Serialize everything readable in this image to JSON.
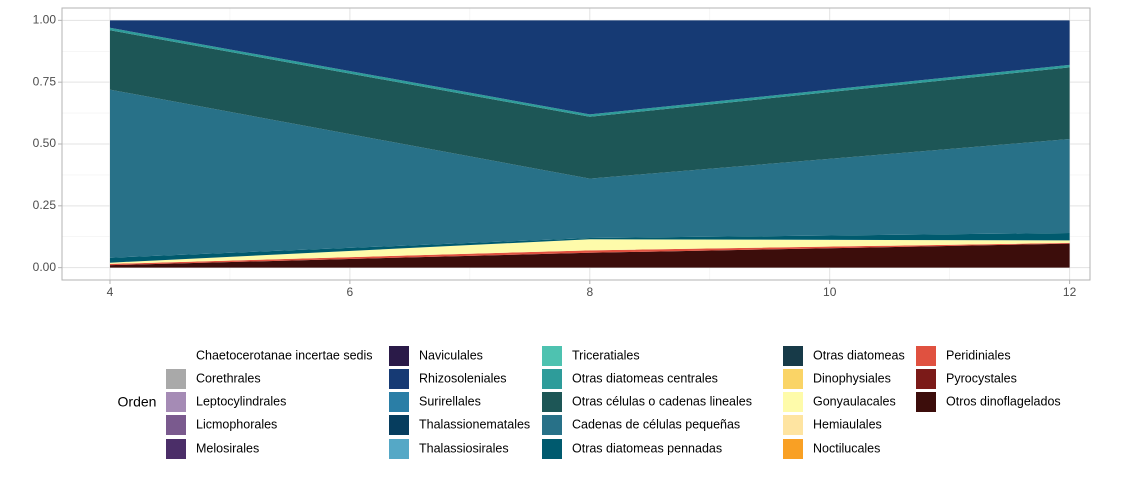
{
  "chart_data": {
    "type": "area",
    "stacked": true,
    "x": [
      4,
      8,
      12
    ],
    "xlim": [
      3.6,
      12.17
    ],
    "xticks": [
      4,
      6,
      8,
      10,
      12
    ],
    "ylim": [
      -0.05,
      1.05
    ],
    "yticks": [
      {
        "value": 0,
        "label": "0.00"
      },
      {
        "value": 0.25,
        "label": "0.25"
      },
      {
        "value": 0.5,
        "label": "0.50"
      },
      {
        "value": 0.75,
        "label": "0.75"
      },
      {
        "value": 1,
        "label": "1.00"
      }
    ],
    "grid": true,
    "legend_position": "bottom",
    "legend_title": "Orden",
    "series": [
      {
        "name": "Chaetocerotanae incertae sedis",
        "color": "#ffffff",
        "values": [
          0,
          0,
          0
        ]
      },
      {
        "name": "Corethrales",
        "color": "#a9a9a9",
        "values": [
          0,
          0,
          0
        ]
      },
      {
        "name": "Leptocylindrales",
        "color": "#a58bb5",
        "values": [
          0,
          0,
          0
        ]
      },
      {
        "name": "Licmophorales",
        "color": "#7a5a8e",
        "values": [
          0,
          0,
          0
        ]
      },
      {
        "name": "Melosirales",
        "color": "#4b2e68",
        "values": [
          0,
          0,
          0
        ]
      },
      {
        "name": "Naviculales",
        "color": "#2a1a48",
        "values": [
          0,
          0,
          0
        ]
      },
      {
        "name": "Rhizosoleniales",
        "color": "#163a74",
        "values": [
          0.03,
          0.38,
          0.18
        ]
      },
      {
        "name": "Surirellales",
        "color": "#2a7ea6",
        "values": [
          0,
          0,
          0
        ]
      },
      {
        "name": "Thalassionematales",
        "color": "#063d5e",
        "values": [
          0,
          0,
          0
        ]
      },
      {
        "name": "Thalassiosirales",
        "color": "#55a8c6",
        "values": [
          0,
          0,
          0
        ]
      },
      {
        "name": "Triceratiales",
        "color": "#4ec2b0",
        "values": [
          0,
          0,
          0
        ]
      },
      {
        "name": "Otras diatomeas centrales",
        "color": "#2e9c9a",
        "values": [
          0.01,
          0.01,
          0.01
        ]
      },
      {
        "name": "Otras células o cadenas lineales",
        "color": "#1d5656",
        "values": [
          0.24,
          0.25,
          0.29
        ]
      },
      {
        "name": "Cadenas de células pequeñas",
        "color": "#287188",
        "values": [
          0.68,
          0.24,
          0.38
        ]
      },
      {
        "name": "Otras diatomeas pennadas",
        "color": "#005a6e",
        "values": [
          0.02,
          0.005,
          0.03
        ]
      },
      {
        "name": "Otras diatomeas",
        "color": "#173a48",
        "values": [
          0,
          0,
          0
        ]
      },
      {
        "name": "Dinophysiales",
        "color": "#fad466",
        "values": [
          0,
          0,
          0
        ]
      },
      {
        "name": "Gonyaulacales",
        "color": "#fefbaa",
        "values": [
          0.005,
          0.045,
          0.01
        ]
      },
      {
        "name": "Hemiaulales",
        "color": "#fee4a1",
        "values": [
          0,
          0,
          0
        ]
      },
      {
        "name": "Noctilucales",
        "color": "#f9a024",
        "values": [
          0,
          0,
          0
        ]
      },
      {
        "name": "Peridiniales",
        "color": "#e05140",
        "values": [
          0.005,
          0.01,
          0.003
        ]
      },
      {
        "name": "Pyrocystales",
        "color": "#7b1a18",
        "values": [
          0,
          0,
          0
        ]
      },
      {
        "name": "Otros dinoflagelados",
        "color": "#3c0d0b",
        "values": [
          0.01,
          0.06,
          0.097
        ]
      }
    ]
  }
}
